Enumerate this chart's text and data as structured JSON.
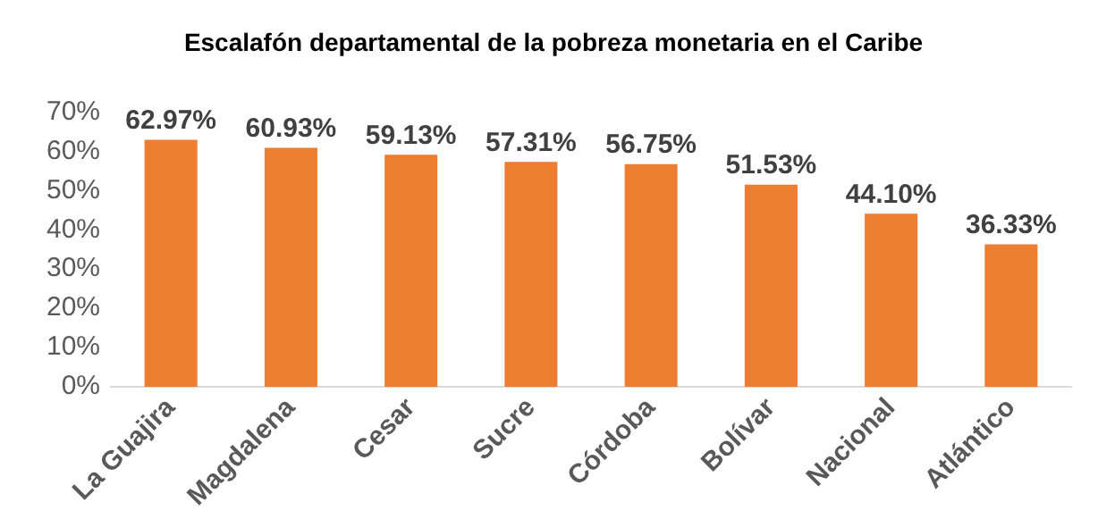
{
  "chart_data": {
    "type": "bar",
    "title": "Escalafón departamental de la pobreza monetaria en el Caribe",
    "categories": [
      "La Guajira",
      "Magdalena",
      "Cesar",
      "Sucre",
      "Córdoba",
      "Bolívar",
      "Nacional",
      "Atlántico"
    ],
    "values": [
      62.97,
      60.93,
      59.13,
      57.31,
      56.75,
      51.53,
      44.1,
      36.33
    ],
    "value_labels": [
      "62.97%",
      "60.93%",
      "59.13%",
      "57.31%",
      "56.75%",
      "51.53%",
      "44.10%",
      "36.33%"
    ],
    "color": "#ed7d31",
    "ylim": [
      0,
      70
    ],
    "yticks": [
      {
        "value": 0,
        "label": "0%"
      },
      {
        "value": 10,
        "label": "10%"
      },
      {
        "value": 20,
        "label": "20%"
      },
      {
        "value": 30,
        "label": "30%"
      },
      {
        "value": 40,
        "label": "40%"
      },
      {
        "value": 50,
        "label": "50%"
      },
      {
        "value": 60,
        "label": "60%"
      },
      {
        "value": 70,
        "label": "70%"
      }
    ],
    "grid": false,
    "legend": false
  }
}
